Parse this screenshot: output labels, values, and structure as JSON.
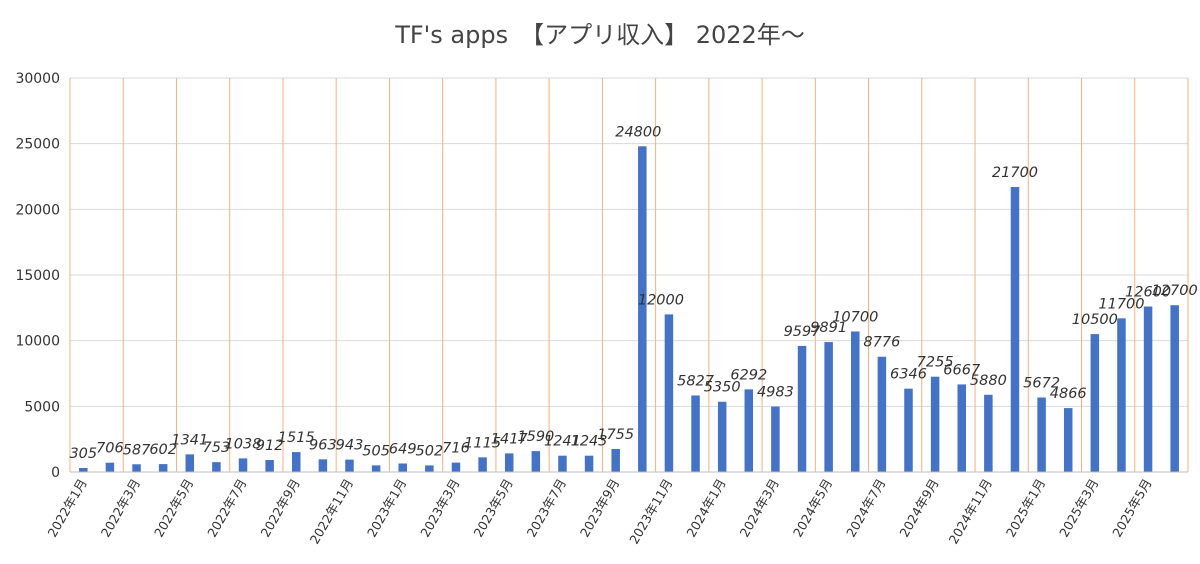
{
  "title": "TF's apps　【アプリ収入】 2022年〜",
  "colors": {
    "bar": "#4472C4",
    "hgrid": "#d9d9d9",
    "vgrid": "#f4b183",
    "axis": "#bfbfbf",
    "text": "#333333"
  },
  "chart_data": {
    "type": "bar",
    "title": "TF's apps　【アプリ収入】 2022年〜",
    "xlabel": "",
    "ylabel": "",
    "ylim": [
      0,
      30000
    ],
    "y_ticks": [
      "0",
      "5000",
      "10000",
      "15000",
      "20000",
      "25000",
      "30000"
    ],
    "grid": true,
    "legend": "none",
    "categories": [
      "2022年1月",
      "2022年2月",
      "2022年3月",
      "2022年4月",
      "2022年5月",
      "2022年6月",
      "2022年7月",
      "2022年8月",
      "2022年9月",
      "2022年10月",
      "2022年11月",
      "2022年12月",
      "2023年1月",
      "2023年2月",
      "2023年3月",
      "2023年4月",
      "2023年5月",
      "2023年6月",
      "2023年7月",
      "2023年8月",
      "2023年9月",
      "2023年10月",
      "2023年11月",
      "2023年12月",
      "2024年1月",
      "2024年2月",
      "2024年3月",
      "2024年4月",
      "2024年5月",
      "2024年6月",
      "2024年7月",
      "2024年8月",
      "2024年9月",
      "2024年10月",
      "2024年11月",
      "2024年12月",
      "2025年1月",
      "2025年2月",
      "2025年3月",
      "2025年4月",
      "2025年5月",
      "2025年6月"
    ],
    "x_tick_labels": [
      "2022年1月",
      "",
      "2022年3月",
      "",
      "2022年5月",
      "",
      "2022年7月",
      "",
      "2022年9月",
      "",
      "2022年11月",
      "",
      "2023年1月",
      "",
      "2023年3月",
      "",
      "2023年5月",
      "",
      "2023年7月",
      "",
      "2023年9月",
      "",
      "2023年11月",
      "",
      "2024年1月",
      "",
      "2024年3月",
      "",
      "2024年5月",
      "",
      "2024年7月",
      "",
      "2024年9月",
      "",
      "2024年11月",
      "",
      "2025年1月",
      "",
      "2025年3月",
      "",
      "2025年5月",
      ""
    ],
    "values": [
      305,
      706,
      587,
      602,
      1341,
      753,
      1038,
      912,
      1515,
      963,
      943,
      505,
      649,
      502,
      716,
      1115,
      1417,
      1590,
      1241,
      1243,
      1755,
      24800,
      12000,
      5827,
      5350,
      6292,
      4983,
      9597,
      9891,
      10700,
      8776,
      6346,
      7255,
      6667,
      5880,
      21700,
      5672,
      4866,
      10500,
      11700,
      12600,
      12700
    ],
    "data_labels": [
      "305",
      "706",
      "587",
      "602",
      "1341",
      "753",
      "1038",
      "912",
      "1515",
      "963",
      "943",
      "505",
      "649",
      "502",
      "716",
      "1115",
      "1417",
      "1590",
      "1241",
      "1243",
      "1755",
      "24800",
      "12000",
      "5827",
      "5350",
      "6292",
      "4983",
      "9597",
      "9891",
      "10700",
      "8776",
      "6346",
      "7255",
      "6667",
      "5880",
      "21700",
      "5672",
      "4866",
      "10500",
      "11700",
      "12600",
      "12700"
    ]
  }
}
